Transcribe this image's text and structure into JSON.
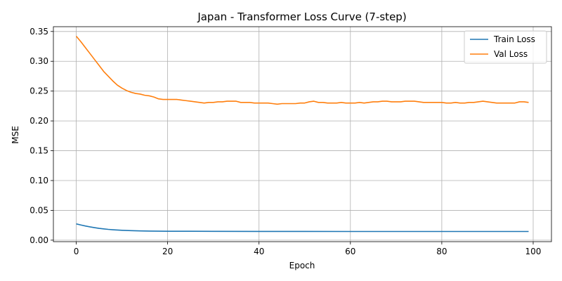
{
  "chart_data": {
    "type": "line",
    "title": "Japan - Transformer Loss Curve (7-step)",
    "xlabel": "Epoch",
    "ylabel": "MSE",
    "xlim": [
      -5,
      104
    ],
    "ylim": [
      -0.0025,
      0.358
    ],
    "xticks": [
      0,
      20,
      40,
      60,
      80,
      100
    ],
    "yticks": [
      0.0,
      0.05,
      0.1,
      0.15,
      0.2,
      0.25,
      0.3,
      0.35
    ],
    "ytick_labels": [
      "0.00",
      "0.05",
      "0.10",
      "0.15",
      "0.20",
      "0.25",
      "0.30",
      "0.35"
    ],
    "grid": true,
    "legend_position": "top-right",
    "series": [
      {
        "name": "Train Loss",
        "color": "#1f77b4",
        "x": [
          0,
          1,
          2,
          3,
          4,
          5,
          6,
          7,
          8,
          9,
          10,
          12,
          14,
          16,
          18,
          20,
          25,
          30,
          40,
          50,
          60,
          70,
          80,
          90,
          99
        ],
        "y": [
          0.0273,
          0.0255,
          0.0238,
          0.0223,
          0.021,
          0.0198,
          0.0189,
          0.0181,
          0.0175,
          0.017,
          0.0166,
          0.016,
          0.0156,
          0.0153,
          0.0151,
          0.015,
          0.0149,
          0.0148,
          0.0147,
          0.0147,
          0.0146,
          0.0146,
          0.0146,
          0.0146,
          0.0146
        ]
      },
      {
        "name": "Val Loss",
        "color": "#ff7f0e",
        "x": [
          0,
          1,
          2,
          3,
          4,
          5,
          6,
          7,
          8,
          9,
          10,
          11,
          12,
          13,
          14,
          15,
          16,
          17,
          18,
          19,
          20,
          21,
          22,
          23,
          24,
          25,
          26,
          27,
          28,
          29,
          30,
          31,
          32,
          33,
          34,
          35,
          36,
          37,
          38,
          39,
          40,
          41,
          42,
          43,
          44,
          45,
          46,
          47,
          48,
          49,
          50,
          51,
          52,
          53,
          54,
          55,
          56,
          57,
          58,
          59,
          60,
          61,
          62,
          63,
          64,
          65,
          66,
          67,
          68,
          69,
          70,
          71,
          72,
          73,
          74,
          75,
          76,
          77,
          78,
          79,
          80,
          81,
          82,
          83,
          84,
          85,
          86,
          87,
          88,
          89,
          90,
          91,
          92,
          93,
          94,
          95,
          96,
          97,
          98,
          99
        ],
        "y": [
          0.342,
          0.333,
          0.323,
          0.313,
          0.303,
          0.293,
          0.283,
          0.275,
          0.267,
          0.26,
          0.255,
          0.251,
          0.248,
          0.246,
          0.245,
          0.243,
          0.242,
          0.24,
          0.237,
          0.236,
          0.236,
          0.236,
          0.236,
          0.235,
          0.234,
          0.233,
          0.232,
          0.231,
          0.23,
          0.231,
          0.231,
          0.232,
          0.232,
          0.233,
          0.233,
          0.233,
          0.231,
          0.231,
          0.231,
          0.23,
          0.23,
          0.23,
          0.23,
          0.229,
          0.228,
          0.229,
          0.229,
          0.229,
          0.229,
          0.23,
          0.23,
          0.232,
          0.233,
          0.231,
          0.231,
          0.23,
          0.23,
          0.23,
          0.231,
          0.23,
          0.23,
          0.23,
          0.231,
          0.23,
          0.231,
          0.232,
          0.232,
          0.233,
          0.233,
          0.232,
          0.232,
          0.232,
          0.233,
          0.233,
          0.233,
          0.232,
          0.231,
          0.231,
          0.231,
          0.231,
          0.231,
          0.23,
          0.23,
          0.231,
          0.23,
          0.23,
          0.231,
          0.231,
          0.232,
          0.233,
          0.232,
          0.231,
          0.23,
          0.23,
          0.23,
          0.23,
          0.23,
          0.232,
          0.232,
          0.231
        ]
      }
    ]
  }
}
